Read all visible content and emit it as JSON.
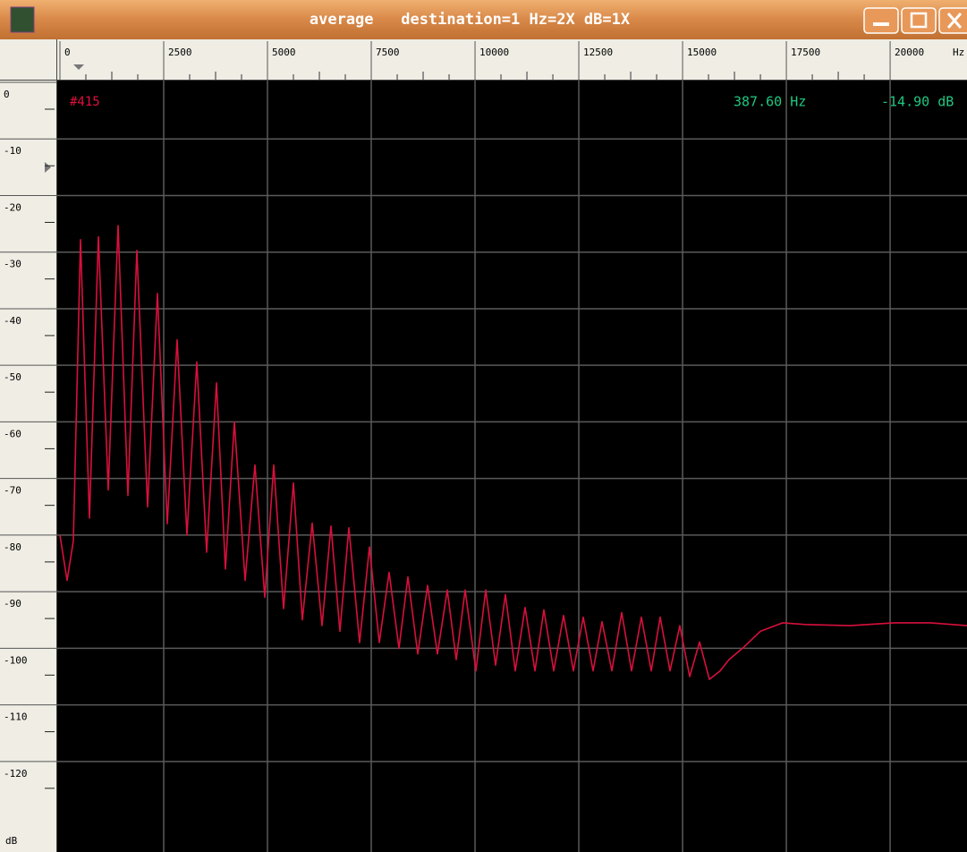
{
  "window": {
    "title": "average   destination=1 Hz=2X dB=1X"
  },
  "chart_data": {
    "type": "line",
    "trace_label": "#415",
    "cursor_freq": "387.60 Hz",
    "cursor_level": "-14.90 dB",
    "x_unit": "Hz",
    "y_unit": "dB",
    "xlim": [
      0,
      21852
    ],
    "xticks": [
      0,
      2500,
      5000,
      7500,
      10000,
      12500,
      15000,
      17500,
      20000
    ],
    "ylim": [
      -136,
      0
    ],
    "yticks": [
      0,
      -10,
      -20,
      -30,
      -40,
      -50,
      -60,
      -70,
      -80,
      -90,
      -100,
      -110,
      -120
    ],
    "grid": true,
    "x": [
      0,
      172,
      323,
      496,
      711,
      927,
      1164,
      1401,
      1638,
      1853,
      2112,
      2349,
      2586,
      2823,
      3060,
      3297,
      3534,
      3771,
      3987,
      4202,
      4461,
      4698,
      4935,
      5150,
      5388,
      5625,
      5840,
      6077,
      6314,
      6530,
      6745,
      6961,
      7219,
      7456,
      7693,
      7930,
      8168,
      8383,
      8620,
      8857,
      9094,
      9331,
      9547,
      9762,
      10021,
      10258,
      10495,
      10732,
      10969,
      11206,
      11443,
      11659,
      11896,
      12133,
      12370,
      12607,
      12844,
      13059,
      13296,
      13533,
      13770,
      14008,
      14245,
      14460,
      14697,
      14934,
      15171,
      15408,
      15645,
      15904,
      16119,
      16443,
      16873,
      17412,
      17951,
      19029,
      20106,
      20968,
      21852
    ],
    "series": [
      {
        "name": "#415",
        "color": "#d8103c",
        "values": [
          -80,
          -88,
          -81,
          -27.8,
          -77,
          -27.3,
          -72,
          -25.3,
          -73,
          -29.7,
          -75,
          -37.3,
          -78,
          -45.5,
          -80,
          -49.4,
          -83,
          -53.1,
          -86,
          -60,
          -88,
          -67.6,
          -91,
          -67.6,
          -93,
          -70.8,
          -95,
          -77.9,
          -96,
          -78.4,
          -97,
          -78.7,
          -99,
          -82.1,
          -99,
          -86.6,
          -100,
          -87.4,
          -101,
          -88.9,
          -101,
          -89.7,
          -102,
          -89.7,
          -104,
          -89.7,
          -103,
          -90.5,
          -104,
          -92.8,
          -104,
          -93.2,
          -104,
          -94.2,
          -104,
          -94.5,
          -104,
          -95.3,
          -104,
          -93.7,
          -104,
          -94.5,
          -104,
          -94.5,
          -104,
          -96,
          -105,
          -98.9,
          -105.5,
          -104,
          -102,
          -100,
          -97,
          -95.5,
          -95.8,
          -96,
          -95.5,
          -95.5,
          -96
        ]
      }
    ]
  }
}
